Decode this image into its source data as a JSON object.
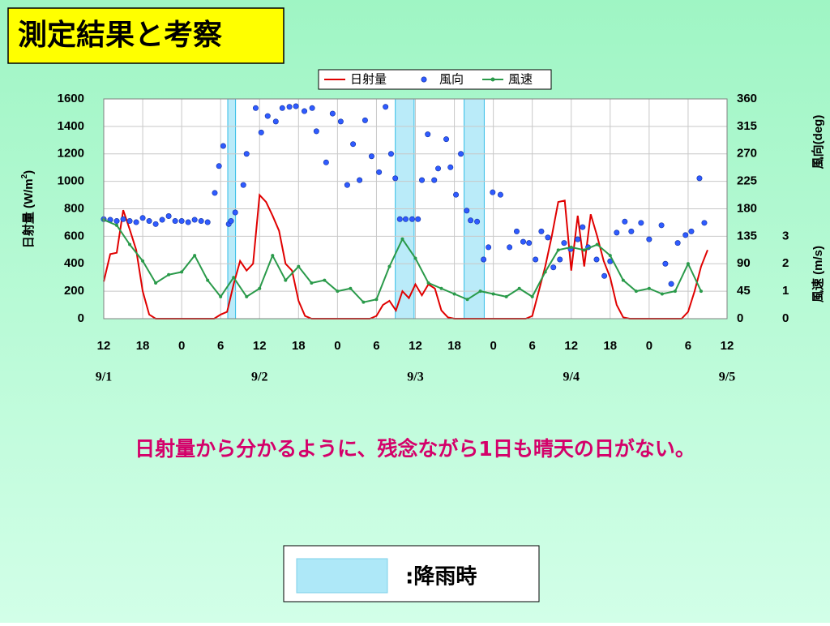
{
  "slide_title": "測定結果と考察",
  "message": "日射量から分かるように、残念ながら1日も晴天の日がない。",
  "rain_legend": ":降雨時",
  "chart_data": {
    "type": "combo",
    "xlim": [
      0,
      96
    ],
    "xticks": [
      {
        "value": 0,
        "label": "12"
      },
      {
        "value": 6,
        "label": "18"
      },
      {
        "value": 12,
        "label": "0"
      },
      {
        "value": 18,
        "label": "6"
      },
      {
        "value": 24,
        "label": "12"
      },
      {
        "value": 30,
        "label": "18"
      },
      {
        "value": 36,
        "label": "0"
      },
      {
        "value": 42,
        "label": "6"
      },
      {
        "value": 48,
        "label": "12"
      },
      {
        "value": 54,
        "label": "18"
      },
      {
        "value": 60,
        "label": "0"
      },
      {
        "value": 66,
        "label": "6"
      },
      {
        "value": 72,
        "label": "12"
      },
      {
        "value": 78,
        "label": "18"
      },
      {
        "value": 84,
        "label": "0"
      },
      {
        "value": 90,
        "label": "6"
      },
      {
        "value": 96,
        "label": "12"
      }
    ],
    "x_date_labels": [
      {
        "value": 0,
        "label": "9/1"
      },
      {
        "value": 24,
        "label": "9/2"
      },
      {
        "value": 48,
        "label": "9/3"
      },
      {
        "value": 72,
        "label": "9/4"
      },
      {
        "value": 96,
        "label": "9/5"
      }
    ],
    "ylim": [
      0,
      1600
    ],
    "yticks": [
      0,
      200,
      400,
      600,
      800,
      1000,
      1200,
      1400,
      1600
    ],
    "y_label": "日射量 (W/m",
    "y_label_sup": "2",
    "y_label_end": ")",
    "y2lim": [
      0,
      360
    ],
    "y2ticks": [
      0,
      45,
      90,
      135,
      180,
      225,
      270,
      315,
      360
    ],
    "y2_label": "風向(deg)",
    "y3lim": [
      0,
      8
    ],
    "y3ticks": [
      0,
      1,
      2,
      3
    ],
    "y3_label": "風速 (m/s)",
    "grid": true,
    "rain_color": "#aee8f8",
    "rain_periods": [
      [
        19.1,
        20.3
      ],
      [
        44.9,
        47.8
      ],
      [
        55.5,
        58.6
      ]
    ],
    "series": [
      {
        "name": "日射量",
        "type": "line",
        "axis": "y",
        "color": "#e00000",
        "x": [
          0,
          1,
          2,
          3,
          4,
          5,
          6,
          7,
          8,
          9,
          10,
          11,
          12,
          13,
          14,
          15,
          16,
          17,
          18,
          19,
          20,
          21,
          22,
          23,
          24,
          25,
          26,
          27,
          28,
          29,
          30,
          31,
          32,
          33,
          34,
          35,
          36,
          37,
          38,
          39,
          40,
          41,
          42,
          43,
          44,
          45,
          46,
          47,
          48,
          49,
          50,
          51,
          52,
          53,
          54,
          55,
          56,
          57,
          58,
          59,
          60,
          61,
          62,
          63,
          64,
          65,
          66,
          67,
          68,
          69,
          70,
          71,
          72,
          73,
          74,
          75,
          76,
          77,
          78,
          79,
          80,
          81,
          82,
          83,
          84,
          85,
          86,
          87,
          88,
          89,
          90,
          91,
          92,
          93
        ],
        "values": [
          270,
          470,
          480,
          790,
          650,
          500,
          200,
          30,
          0,
          0,
          0,
          0,
          0,
          0,
          0,
          0,
          0,
          0,
          30,
          50,
          250,
          420,
          350,
          400,
          900,
          850,
          750,
          640,
          400,
          350,
          130,
          20,
          0,
          0,
          0,
          0,
          0,
          0,
          0,
          0,
          0,
          0,
          20,
          100,
          130,
          60,
          200,
          150,
          250,
          170,
          250,
          220,
          60,
          10,
          0,
          0,
          0,
          0,
          0,
          0,
          0,
          0,
          0,
          0,
          0,
          0,
          20,
          200,
          380,
          600,
          850,
          860,
          350,
          750,
          380,
          760,
          600,
          420,
          300,
          100,
          10,
          0,
          0,
          0,
          0,
          0,
          0,
          0,
          0,
          0,
          50,
          200,
          380,
          500
        ]
      },
      {
        "name": "風向",
        "type": "scatter",
        "axis": "y2",
        "color": "#2f5bff",
        "x": [
          0,
          1,
          2,
          3,
          4,
          5,
          6,
          7,
          8,
          9,
          10,
          11,
          12,
          13,
          14,
          15,
          16,
          17.1,
          17.75,
          18.4,
          19.25,
          19.6,
          20.25,
          21.5,
          22,
          23.4,
          24.25,
          25.25,
          26.5,
          27.5,
          28.6,
          29.6,
          30.9,
          32.1,
          32.75,
          34.25,
          35.25,
          36.5,
          37.5,
          38.4,
          39.4,
          40.25,
          41.25,
          42.4,
          43.4,
          44.25,
          44.9,
          45.6,
          46.5,
          47.5,
          48.4,
          49,
          49.9,
          50.9,
          51.5,
          52.75,
          53.4,
          54.25,
          55,
          55.9,
          56.5,
          57.5,
          58.5,
          59.25,
          59.9,
          61.1,
          62.5,
          63.6,
          64.6,
          65.5,
          66.5,
          67.4,
          68.4,
          69.25,
          70.25,
          70.9,
          71.9,
          73,
          73.75,
          74.6,
          75.9,
          77.1,
          78,
          79,
          80.25,
          81.25,
          82.75,
          84,
          85.9,
          86.5,
          87.4,
          88.4,
          89.6,
          90.5,
          91.75,
          92.5
        ],
        "values": [
          163,
          162,
          160,
          163,
          160,
          158,
          165,
          160,
          155,
          162,
          168,
          160,
          160,
          158,
          162,
          160,
          158,
          206,
          250,
          283,
          155,
          160,
          174,
          219,
          270,
          345,
          305,
          332,
          323,
          345,
          347,
          348,
          340,
          345,
          307,
          256,
          336,
          323,
          219,
          286,
          227,
          325,
          266,
          240,
          347,
          270,
          230,
          163,
          163,
          163,
          163,
          227,
          302,
          227,
          246,
          294,
          248,
          203,
          270,
          177,
          161,
          159,
          97,
          117,
          207,
          203,
          117,
          143,
          126,
          124,
          97,
          143,
          133,
          84,
          97,
          124,
          114,
          130,
          150,
          117,
          97,
          70,
          94,
          141,
          159,
          143,
          157,
          130,
          153,
          90,
          57,
          124,
          137,
          143,
          230,
          157
        ]
      },
      {
        "name": "風速",
        "type": "line",
        "axis": "y3",
        "color": "#2a9a4a",
        "x": [
          0,
          2,
          4,
          6,
          8,
          10,
          12,
          14,
          16,
          18,
          20,
          22,
          24,
          26,
          28,
          30,
          32,
          34,
          36,
          38,
          40,
          42,
          44,
          46,
          48,
          50,
          52,
          54,
          56,
          58,
          60,
          62,
          64,
          66,
          68,
          70,
          72,
          74,
          76,
          78,
          80,
          82,
          84,
          86,
          88,
          90,
          92
        ],
        "values": [
          3.6,
          3.4,
          2.7,
          2.1,
          1.3,
          1.6,
          1.7,
          2.3,
          1.4,
          0.8,
          1.5,
          0.8,
          1.1,
          2.3,
          1.4,
          1.9,
          1.3,
          1.4,
          1.0,
          1.1,
          0.6,
          0.7,
          1.9,
          2.9,
          2.2,
          1.3,
          1.1,
          0.9,
          0.7,
          1.0,
          0.9,
          0.8,
          1.1,
          0.8,
          1.7,
          2.5,
          2.6,
          2.5,
          2.7,
          2.3,
          1.4,
          1.0,
          1.1,
          0.9,
          1.0,
          2.0,
          1.0
        ]
      }
    ]
  }
}
